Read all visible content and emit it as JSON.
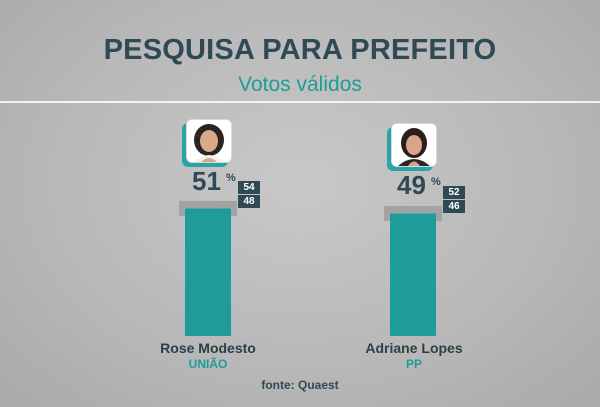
{
  "title": "PESQUISA PARA PREFEITO",
  "subtitle": "Votos válidos",
  "source": "fonte: Quaest",
  "colors": {
    "bar": "#1e9c9c",
    "range": "#a3a3a3",
    "badge": "#2f4a55",
    "title": "#2f4a55",
    "accent": "#1e9c9c"
  },
  "chart_data": {
    "type": "bar",
    "title": "PESQUISA PARA PREFEITO",
    "subtitle": "Votos válidos",
    "categories": [
      "Rose Modesto",
      "Adriane Lopes"
    ],
    "parties": [
      "UNIÃO",
      "PP"
    ],
    "values": [
      51,
      49
    ],
    "value_labels": [
      "51",
      "49"
    ],
    "percent_symbol": "%",
    "upper_bound": [
      54,
      52
    ],
    "lower_bound": [
      48,
      46
    ],
    "upper_labels": [
      "54",
      "52"
    ],
    "lower_labels": [
      "48",
      "46"
    ],
    "ylim": [
      0,
      100
    ]
  }
}
